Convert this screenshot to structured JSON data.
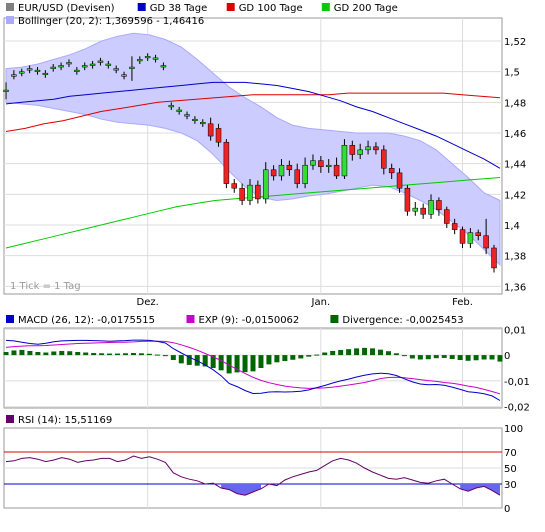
{
  "chart_data": [
    {
      "type": "candlestick",
      "legend": [
        {
          "label": "EUR/USD (Devisen)",
          "color": "#7f7f7f"
        },
        {
          "label": "GD 38 Tage",
          "color": "#0000cc"
        },
        {
          "label": "GD 100 Tage",
          "color": "#dd0000"
        },
        {
          "label": "GD 200 Tage",
          "color": "#00cc00"
        },
        {
          "label": "Bollinger (20, 2): 1,369596 - 1,46416",
          "color": "#aaaaff"
        }
      ],
      "legend_placement": "top-left",
      "y_ticks": [
        "1,52",
        "1,5",
        "1,48",
        "1,46",
        "1,44",
        "1,42",
        "1,4",
        "1,38",
        "1,36"
      ],
      "ylim": [
        1.355,
        1.535
      ],
      "x_ticks": [
        "Dez.",
        "Jan.",
        "Feb."
      ],
      "annotation": "1 Tick = 1 Tag",
      "grid": true,
      "candles": [
        [
          1.487,
          1.488,
          1.493,
          1.482
        ],
        [
          1.497,
          1.498,
          1.501,
          1.495
        ],
        [
          1.499,
          1.5,
          1.502,
          1.497
        ],
        [
          1.501,
          1.502,
          1.504,
          1.499
        ],
        [
          1.5,
          1.501,
          1.503,
          1.498
        ],
        [
          1.498,
          1.499,
          1.501,
          1.496
        ],
        [
          1.502,
          1.503,
          1.505,
          1.5
        ],
        [
          1.503,
          1.504,
          1.506,
          1.501
        ],
        [
          1.505,
          1.506,
          1.508,
          1.503
        ],
        [
          1.5,
          1.501,
          1.503,
          1.498
        ],
        [
          1.503,
          1.504,
          1.506,
          1.501
        ],
        [
          1.504,
          1.505,
          1.507,
          1.502
        ],
        [
          1.506,
          1.507,
          1.509,
          1.504
        ],
        [
          1.504,
          1.505,
          1.507,
          1.502
        ],
        [
          1.501,
          1.502,
          1.504,
          1.499
        ],
        [
          1.497,
          1.498,
          1.5,
          1.495
        ],
        [
          1.502,
          1.503,
          1.51,
          1.494
        ],
        [
          1.507,
          1.508,
          1.51,
          1.505
        ],
        [
          1.509,
          1.51,
          1.512,
          1.507
        ],
        [
          1.508,
          1.509,
          1.511,
          1.506
        ],
        [
          1.503,
          1.504,
          1.506,
          1.501
        ],
        [
          1.477,
          1.478,
          1.48,
          1.475
        ],
        [
          1.474,
          1.475,
          1.477,
          1.472
        ],
        [
          1.471,
          1.472,
          1.474,
          1.469
        ],
        [
          1.468,
          1.469,
          1.471,
          1.466
        ],
        [
          1.466,
          1.467,
          1.469,
          1.464
        ],
        [
          1.466,
          1.458,
          1.47,
          1.455
        ],
        [
          1.463,
          1.454,
          1.466,
          1.451
        ],
        [
          1.454,
          1.427,
          1.456,
          1.424
        ],
        [
          1.427,
          1.424,
          1.43,
          1.421
        ],
        [
          1.424,
          1.416,
          1.427,
          1.413
        ],
        [
          1.416,
          1.426,
          1.43,
          1.413
        ],
        [
          1.426,
          1.417,
          1.429,
          1.414
        ],
        [
          1.417,
          1.436,
          1.441,
          1.414
        ],
        [
          1.436,
          1.432,
          1.439,
          1.429
        ],
        [
          1.432,
          1.439,
          1.443,
          1.429
        ],
        [
          1.439,
          1.436,
          1.442,
          1.432
        ],
        [
          1.436,
          1.427,
          1.44,
          1.424
        ],
        [
          1.427,
          1.439,
          1.444,
          1.424
        ],
        [
          1.439,
          1.442,
          1.446,
          1.436
        ],
        [
          1.442,
          1.438,
          1.445,
          1.434
        ],
        [
          1.438,
          1.439,
          1.443,
          1.434
        ],
        [
          1.439,
          1.432,
          1.444,
          1.43
        ],
        [
          1.432,
          1.452,
          1.456,
          1.43
        ],
        [
          1.452,
          1.446,
          1.455,
          1.442
        ],
        [
          1.446,
          1.449,
          1.453,
          1.443
        ],
        [
          1.449,
          1.451,
          1.455,
          1.446
        ],
        [
          1.451,
          1.449,
          1.454,
          1.446
        ],
        [
          1.449,
          1.437,
          1.452,
          1.433
        ],
        [
          1.437,
          1.434,
          1.44,
          1.43
        ],
        [
          1.434,
          1.424,
          1.437,
          1.421
        ],
        [
          1.424,
          1.409,
          1.426,
          1.406
        ],
        [
          1.409,
          1.411,
          1.415,
          1.406
        ],
        [
          1.411,
          1.407,
          1.414,
          1.404
        ],
        [
          1.407,
          1.416,
          1.42,
          1.404
        ],
        [
          1.416,
          1.41,
          1.418,
          1.406
        ],
        [
          1.41,
          1.401,
          1.412,
          1.398
        ],
        [
          1.401,
          1.397,
          1.404,
          1.394
        ],
        [
          1.397,
          1.388,
          1.399,
          1.385
        ],
        [
          1.388,
          1.395,
          1.398,
          1.385
        ],
        [
          1.395,
          1.393,
          1.397,
          1.39
        ],
        [
          1.393,
          1.385,
          1.404,
          1.381
        ],
        [
          1.385,
          1.372,
          1.387,
          1.369
        ]
      ],
      "gd38": [
        1.479,
        1.48,
        1.481,
        1.482,
        1.484,
        1.485,
        1.486,
        1.487,
        1.488,
        1.489,
        1.49,
        1.491,
        1.492,
        1.493,
        1.493,
        1.493,
        1.492,
        1.491,
        1.489,
        1.487,
        1.484,
        1.481,
        1.477,
        1.474,
        1.47,
        1.466,
        1.462,
        1.458,
        1.453,
        1.448,
        1.443,
        1.437
      ],
      "gd100": [
        1.461,
        1.463,
        1.466,
        1.468,
        1.471,
        1.474,
        1.476,
        1.478,
        1.48,
        1.481,
        1.482,
        1.483,
        1.484,
        1.485,
        1.485,
        1.485,
        1.485,
        1.485,
        1.486,
        1.486,
        1.486,
        1.486,
        1.486,
        1.486,
        1.485,
        1.484,
        1.483
      ],
      "gd200": [
        1.385,
        1.388,
        1.391,
        1.394,
        1.397,
        1.4,
        1.403,
        1.406,
        1.409,
        1.412,
        1.414,
        1.416,
        1.417,
        1.418,
        1.419,
        1.42,
        1.421,
        1.422,
        1.423,
        1.424,
        1.425,
        1.426,
        1.427,
        1.428,
        1.429,
        1.43,
        1.431
      ],
      "boll_upper": [
        1.502,
        1.503,
        1.505,
        1.508,
        1.511,
        1.515,
        1.52,
        1.523,
        1.525,
        1.524,
        1.521,
        1.516,
        1.508,
        1.499,
        1.49,
        1.483,
        1.477,
        1.47,
        1.465,
        1.463,
        1.462,
        1.461,
        1.46,
        1.46,
        1.46,
        1.458,
        1.455,
        1.449,
        1.44,
        1.431,
        1.421,
        1.416
      ],
      "boll_lower": [
        1.48,
        1.479,
        1.478,
        1.476,
        1.474,
        1.472,
        1.469,
        1.467,
        1.466,
        1.465,
        1.463,
        1.46,
        1.455,
        1.446,
        1.435,
        1.425,
        1.418,
        1.416,
        1.417,
        1.419,
        1.42,
        1.422,
        1.424,
        1.426,
        1.425,
        1.421,
        1.416,
        1.41,
        1.402,
        1.394,
        1.384,
        1.374
      ]
    },
    {
      "type": "macd",
      "legend": [
        {
          "label": "MACD (26, 12): -0,0175515",
          "color": "#0000cc"
        },
        {
          "label": "EXP (9): -0,0150062",
          "color": "#cc00cc"
        },
        {
          "label": "Divergence: -0,0025453",
          "color": "#006600"
        }
      ],
      "legend_placement": "top-left",
      "y_ticks": [
        "0,01",
        "0",
        "-0,01",
        "-0,02"
      ],
      "ylim": [
        -0.0205,
        0.0105
      ],
      "macd": [
        0.0057,
        0.0055,
        0.005,
        0.0045,
        0.0042,
        0.0046,
        0.0052,
        0.0055,
        0.0056,
        0.0057,
        0.0057,
        0.0056,
        0.0055,
        0.0054,
        0.0055,
        0.0056,
        0.0058,
        0.0058,
        0.0057,
        0.0053,
        0.0047,
        0.0025,
        0.0008,
        -0.0008,
        -0.0022,
        -0.0038,
        -0.0057,
        -0.008,
        -0.011,
        -0.0122,
        -0.0137,
        -0.0149,
        -0.0148,
        -0.0143,
        -0.0142,
        -0.0143,
        -0.0142,
        -0.014,
        -0.0135,
        -0.0126,
        -0.0118,
        -0.0108,
        -0.01,
        -0.0093,
        -0.0085,
        -0.0078,
        -0.0073,
        -0.007,
        -0.0072,
        -0.0079,
        -0.0092,
        -0.0104,
        -0.0112,
        -0.0115,
        -0.0114,
        -0.0117,
        -0.0124,
        -0.0133,
        -0.0142,
        -0.0145,
        -0.015,
        -0.0158,
        -0.0176
      ],
      "exp": [
        0.003,
        0.0033,
        0.0035,
        0.0036,
        0.0036,
        0.0037,
        0.0039,
        0.0041,
        0.0043,
        0.0045,
        0.0046,
        0.0047,
        0.0048,
        0.0049,
        0.005,
        0.005,
        0.0051,
        0.0053,
        0.0054,
        0.0054,
        0.0053,
        0.0048,
        0.004,
        0.003,
        0.0019,
        0.0006,
        -0.0007,
        -0.0021,
        -0.0039,
        -0.0055,
        -0.0071,
        -0.0086,
        -0.0098,
        -0.0107,
        -0.0114,
        -0.012,
        -0.0124,
        -0.0127,
        -0.0129,
        -0.0128,
        -0.0127,
        -0.0124,
        -0.012,
        -0.0116,
        -0.0111,
        -0.0106,
        -0.0099,
        -0.0091,
        -0.0087,
        -0.0086,
        -0.0088,
        -0.0091,
        -0.0095,
        -0.0099,
        -0.0102,
        -0.0106,
        -0.0109,
        -0.0114,
        -0.012,
        -0.0125,
        -0.0133,
        -0.0141,
        -0.015
      ],
      "divergence": [
        0.0012,
        0.0018,
        0.002,
        0.0016,
        0.0012,
        0.001,
        0.0014,
        0.0016,
        0.0015,
        0.0012,
        0.001,
        0.0008,
        0.0007,
        0.0006,
        0.0006,
        0.0007,
        0.0008,
        0.0007,
        0.0005,
        0.0002,
        -0.0004,
        -0.0019,
        -0.0032,
        -0.0038,
        -0.0041,
        -0.0044,
        -0.005,
        -0.0059,
        -0.0071,
        -0.0067,
        -0.0066,
        -0.0063,
        -0.005,
        -0.0036,
        -0.0028,
        -0.0023,
        -0.0018,
        -0.0013,
        -0.0006,
        0.0002,
        0.001,
        0.0016,
        0.002,
        0.0023,
        0.0026,
        0.0028,
        0.0026,
        0.0021,
        0.0015,
        0.0007,
        -0.0004,
        -0.0013,
        -0.0017,
        -0.0016,
        -0.0012,
        -0.0011,
        -0.0015,
        -0.0019,
        -0.0022,
        -0.002,
        -0.0017,
        -0.0017,
        -0.0025
      ]
    },
    {
      "type": "rsi",
      "legend": [
        {
          "label": "RSI (14): 15,51169",
          "color": "#660066"
        }
      ],
      "legend_placement": "top-left",
      "y_ticks": [
        "100",
        "70",
        "50",
        "30",
        "0"
      ],
      "ylim": [
        0,
        100
      ],
      "overbought": 70,
      "oversold": 30,
      "rsi": [
        58,
        59,
        62,
        63,
        61,
        58,
        60,
        63,
        61,
        57,
        59,
        60,
        62,
        62,
        58,
        60,
        65,
        62,
        64,
        61,
        57,
        44,
        39,
        36,
        34,
        30,
        31,
        25,
        23,
        18,
        16,
        20,
        24,
        30,
        28,
        35,
        39,
        42,
        45,
        47,
        53,
        59,
        62,
        60,
        56,
        50,
        45,
        41,
        37,
        36,
        38,
        35,
        32,
        31,
        34,
        36,
        30,
        24,
        21,
        25,
        27,
        22,
        16
      ]
    }
  ]
}
